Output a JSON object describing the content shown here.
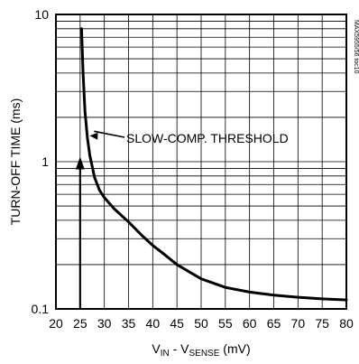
{
  "chart_data": {
    "type": "line",
    "xlabel_main": "V",
    "xlabel_sub1": "IN",
    "xlabel_mid": " - V",
    "xlabel_sub2": "SENSE",
    "xlabel_unit": " (mV)",
    "ylabel": "TURN-OFF TIME (ms)",
    "xlim": [
      20,
      80
    ],
    "ylim": [
      0.1,
      10
    ],
    "yscale": "log",
    "grid": true,
    "x_ticks": [
      "20",
      "25",
      "30",
      "35",
      "40",
      "45",
      "50",
      "55",
      "60",
      "65",
      "70",
      "75",
      "80"
    ],
    "y_ticks": [
      "0.1",
      "1",
      "10"
    ],
    "series": [
      {
        "x": [
          25.3,
          25.6,
          26,
          26.5,
          27,
          28,
          29,
          30,
          32,
          35,
          38,
          40,
          42,
          45,
          48,
          50,
          55,
          60,
          65,
          70,
          75,
          80
        ],
        "y": [
          8.0,
          4.0,
          2.2,
          1.45,
          1.1,
          0.78,
          0.64,
          0.57,
          0.48,
          0.39,
          0.31,
          0.27,
          0.24,
          0.2,
          0.175,
          0.16,
          0.14,
          0.13,
          0.124,
          0.12,
          0.117,
          0.115
        ]
      }
    ],
    "annotation": {
      "text": "SLOW-COMP. THRESHOLD",
      "threshold_x": 25
    },
    "figure_id": "MAX5955/56 toc10"
  }
}
